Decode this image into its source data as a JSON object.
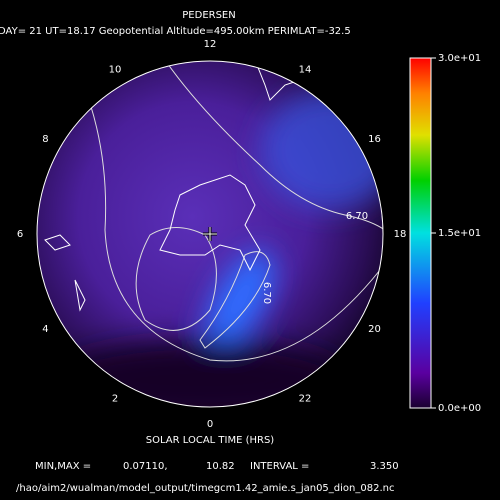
{
  "title": "PEDERSEN",
  "subtitle": "DAY= 21 UT=18.17 Geopotential Altitude=495.00km PERIMLAT=-32.5",
  "local_time_ticks": [
    12,
    14,
    16,
    18,
    20,
    22,
    0,
    2,
    4,
    6,
    8,
    10
  ],
  "contour_labels": [
    "6.70",
    "6.70"
  ],
  "colorbar": {
    "lim": [
      0,
      30
    ],
    "ticks": [
      {
        "value": 30,
        "label": "3.0e+01"
      },
      {
        "value": 15,
        "label": "1.5e+01"
      },
      {
        "value": 0,
        "label": "0.0e+00"
      }
    ]
  },
  "xlabel": "SOLAR LOCAL TIME (HRS)",
  "stats": {
    "minmax_label": "MIN,MAX =",
    "min": "0.07110,",
    "max": "10.82",
    "interval_label": "INTERVAL =",
    "interval": "3.350"
  },
  "file": "/hao/aim2/wualman/model_output/timegcm1.42_amie.s_jan05_dion_082.nc"
}
